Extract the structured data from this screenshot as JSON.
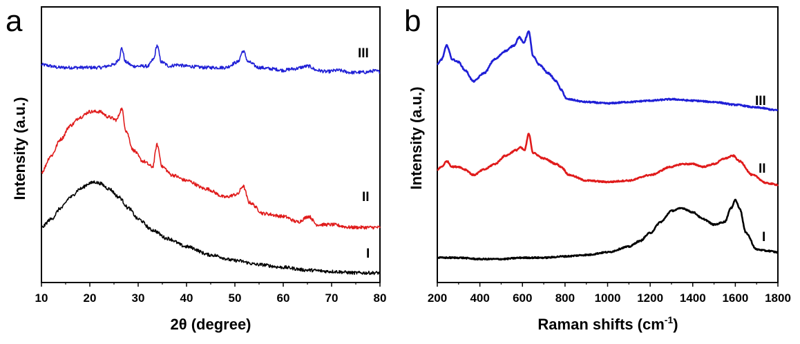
{
  "chart_data": [
    {
      "panel": "a",
      "type": "line",
      "title": "",
      "xlabel": "2θ (degree)",
      "ylabel": "Intensity (a.u.)",
      "xlim": [
        10,
        80
      ],
      "ylim": [
        0,
        1
      ],
      "xticks": [
        10,
        20,
        30,
        40,
        50,
        60,
        70,
        80
      ],
      "y_tick_labels": false,
      "grid": false,
      "legend": "inline labels at right end of curves",
      "series": [
        {
          "name": "III",
          "color": "#1f1fd6",
          "x": [
            10,
            14,
            18,
            22,
            25,
            26,
            26.6,
            27.4,
            29,
            32,
            33.2,
            33.9,
            34.8,
            36.5,
            38,
            40,
            44,
            48,
            50.6,
            51.7,
            52.8,
            55,
            57.8,
            60,
            62,
            65.2,
            67,
            69,
            71.3,
            74,
            77,
            78.8,
            80
          ],
          "y": [
            0.79,
            0.78,
            0.78,
            0.78,
            0.79,
            0.81,
            0.85,
            0.8,
            0.785,
            0.785,
            0.81,
            0.86,
            0.8,
            0.785,
            0.79,
            0.785,
            0.78,
            0.78,
            0.8,
            0.84,
            0.8,
            0.78,
            0.775,
            0.77,
            0.775,
            0.785,
            0.77,
            0.765,
            0.77,
            0.762,
            0.763,
            0.768,
            0.765
          ]
        },
        {
          "name": "II",
          "color": "#e01b1b",
          "x": [
            10,
            12,
            14,
            16,
            18,
            20,
            22,
            24,
            25.5,
            26.6,
            27.5,
            29,
            31,
            33,
            33.9,
            35,
            37,
            40,
            44,
            48,
            50.5,
            51.7,
            53,
            56,
            60,
            63,
            65.3,
            67,
            70,
            74,
            77,
            80
          ],
          "y": [
            0.4,
            0.46,
            0.52,
            0.57,
            0.6,
            0.62,
            0.62,
            0.6,
            0.59,
            0.63,
            0.55,
            0.48,
            0.44,
            0.42,
            0.5,
            0.42,
            0.39,
            0.37,
            0.34,
            0.31,
            0.32,
            0.35,
            0.29,
            0.25,
            0.24,
            0.22,
            0.24,
            0.21,
            0.21,
            0.2,
            0.2,
            0.2
          ]
        },
        {
          "name": "I",
          "color": "#000000",
          "x": [
            10,
            12,
            14,
            16,
            18,
            20,
            21,
            22,
            24,
            26,
            28,
            30,
            33,
            36,
            40,
            45,
            50,
            55,
            60,
            65,
            70,
            75,
            80
          ],
          "y": [
            0.2,
            0.23,
            0.27,
            0.31,
            0.34,
            0.36,
            0.365,
            0.36,
            0.34,
            0.31,
            0.27,
            0.23,
            0.19,
            0.16,
            0.13,
            0.1,
            0.08,
            0.065,
            0.055,
            0.045,
            0.04,
            0.035,
            0.035
          ]
        }
      ],
      "curve_labels": [
        "III",
        "II",
        "I"
      ]
    },
    {
      "panel": "b",
      "type": "line",
      "title": "",
      "xlabel": "Raman shifts (cm",
      "xlabel_superscript": "-1",
      "xlabel_suffix": ")",
      "ylabel": "Intensity (a.u.)",
      "xlim": [
        200,
        1800
      ],
      "ylim": [
        0,
        1
      ],
      "xticks": [
        200,
        400,
        600,
        800,
        1000,
        1200,
        1400,
        1600,
        1800
      ],
      "y_tick_labels": false,
      "grid": false,
      "legend": "inline labels at right end of curves",
      "series": [
        {
          "name": "III",
          "color": "#1f1fd6",
          "x": [
            200,
            220,
            245,
            270,
            300,
            330,
            370,
            420,
            470,
            520,
            560,
            585,
            605,
            630,
            650,
            680,
            720,
            760,
            780,
            810,
            900,
            1000,
            1100,
            1200,
            1300,
            1400,
            1500,
            1600,
            1700,
            1800
          ],
          "y": [
            0.79,
            0.81,
            0.86,
            0.81,
            0.8,
            0.77,
            0.73,
            0.76,
            0.81,
            0.84,
            0.86,
            0.89,
            0.87,
            0.91,
            0.82,
            0.79,
            0.76,
            0.73,
            0.7,
            0.665,
            0.655,
            0.65,
            0.655,
            0.66,
            0.665,
            0.66,
            0.655,
            0.645,
            0.635,
            0.625
          ]
        },
        {
          "name": "II",
          "color": "#e01b1b",
          "x": [
            200,
            220,
            245,
            270,
            300,
            330,
            370,
            420,
            470,
            520,
            570,
            590,
            610,
            630,
            650,
            700,
            760,
            780,
            820,
            900,
            1000,
            1100,
            1200,
            1300,
            1350,
            1400,
            1450,
            1500,
            1550,
            1590,
            1620,
            1680,
            1750,
            1800
          ],
          "y": [
            0.41,
            0.42,
            0.44,
            0.42,
            0.42,
            0.41,
            0.39,
            0.41,
            0.43,
            0.46,
            0.48,
            0.49,
            0.48,
            0.54,
            0.47,
            0.45,
            0.43,
            0.42,
            0.39,
            0.37,
            0.365,
            0.37,
            0.39,
            0.42,
            0.43,
            0.43,
            0.42,
            0.43,
            0.45,
            0.46,
            0.44,
            0.39,
            0.36,
            0.355
          ]
        },
        {
          "name": "I",
          "color": "#000000",
          "x": [
            200,
            300,
            400,
            500,
            600,
            700,
            800,
            900,
            1000,
            1100,
            1150,
            1200,
            1250,
            1300,
            1350,
            1400,
            1450,
            1500,
            1550,
            1580,
            1600,
            1620,
            1650,
            1700,
            1750,
            1800
          ],
          "y": [
            0.09,
            0.09,
            0.085,
            0.085,
            0.09,
            0.09,
            0.095,
            0.1,
            0.11,
            0.13,
            0.15,
            0.18,
            0.22,
            0.26,
            0.27,
            0.255,
            0.23,
            0.21,
            0.22,
            0.27,
            0.3,
            0.27,
            0.18,
            0.12,
            0.115,
            0.11
          ]
        }
      ],
      "curve_labels": [
        "III",
        "II",
        "I"
      ]
    }
  ]
}
